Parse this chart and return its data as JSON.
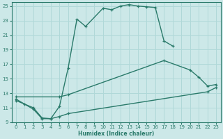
{
  "xlabel": "Humidex (Indice chaleur)",
  "xlim": [
    -0.5,
    23.5
  ],
  "ylim": [
    9,
    25.5
  ],
  "yticks": [
    9,
    11,
    13,
    15,
    17,
    19,
    21,
    23,
    25
  ],
  "xticks": [
    0,
    1,
    2,
    3,
    4,
    5,
    6,
    7,
    8,
    9,
    10,
    11,
    12,
    13,
    14,
    15,
    16,
    17,
    18,
    19,
    20,
    21,
    22,
    23
  ],
  "bg_color": "#cce8e8",
  "line_color": "#2a7a6a",
  "grid_color": "#b0d8d8",
  "series1_x": [
    0,
    1,
    2,
    3,
    4,
    5,
    6,
    7,
    8,
    10,
    11,
    12,
    13,
    14,
    15,
    16,
    17,
    18
  ],
  "series1_y": [
    12.2,
    11.5,
    10.8,
    9.5,
    9.5,
    11.2,
    16.5,
    23.2,
    22.2,
    24.7,
    24.5,
    25.0,
    25.2,
    25.0,
    24.9,
    24.8,
    20.2,
    19.5
  ],
  "series2_x": [
    0,
    5,
    6,
    17,
    20,
    21,
    22,
    23
  ],
  "series2_y": [
    12.5,
    12.5,
    12.8,
    17.5,
    16.2,
    15.2,
    14.0,
    14.2
  ],
  "series3_x": [
    0,
    2,
    3,
    4,
    5,
    6,
    22,
    23
  ],
  "series3_y": [
    12.0,
    11.0,
    9.6,
    9.5,
    9.8,
    10.2,
    13.2,
    13.8
  ],
  "linewidth": 1.0,
  "markersize": 3.5
}
